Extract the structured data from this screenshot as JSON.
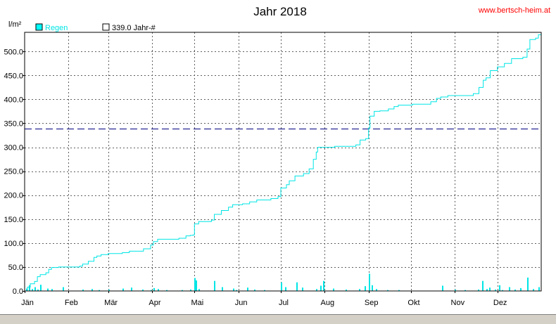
{
  "watermark": "www.bertsch-heim.at",
  "chart_data": {
    "type": "line",
    "title": "Jahr 2018",
    "ylabel": "l/m²",
    "ylim": [
      0,
      540
    ],
    "grid": true,
    "legend_placement": "top-left",
    "yticks": [
      0,
      50,
      100,
      150,
      200,
      250,
      300,
      350,
      400,
      450,
      500
    ],
    "ytick_labels": [
      "0.0",
      "50.0",
      "100.0",
      "150.0",
      "200.0",
      "250.0",
      "300.0",
      "350.0",
      "400.0",
      "450.0",
      "500.0"
    ],
    "x_range_days": [
      1,
      366
    ],
    "months": [
      {
        "label": "Jän",
        "day": 1
      },
      {
        "label": "Feb",
        "day": 32
      },
      {
        "label": "Mär",
        "day": 60
      },
      {
        "label": "Apr",
        "day": 91
      },
      {
        "label": "Mai",
        "day": 121
      },
      {
        "label": "Jun",
        "day": 152
      },
      {
        "label": "Jul",
        "day": 182
      },
      {
        "label": "Aug",
        "day": 213
      },
      {
        "label": "Sep",
        "day": 244
      },
      {
        "label": "Okt",
        "day": 274
      },
      {
        "label": "Nov",
        "day": 305
      },
      {
        "label": "Dez",
        "day": 335
      }
    ],
    "series": [
      {
        "name": "Regen",
        "type": "cumulative-line",
        "color": "#00e5e5",
        "points": [
          [
            1,
            0
          ],
          [
            3,
            8
          ],
          [
            5,
            15
          ],
          [
            8,
            20
          ],
          [
            10,
            30
          ],
          [
            12,
            34
          ],
          [
            16,
            38
          ],
          [
            18,
            45
          ],
          [
            20,
            49
          ],
          [
            25,
            50
          ],
          [
            35,
            50
          ],
          [
            40,
            52
          ],
          [
            42,
            56
          ],
          [
            46,
            62
          ],
          [
            50,
            70
          ],
          [
            52,
            73
          ],
          [
            55,
            76
          ],
          [
            60,
            78
          ],
          [
            70,
            80
          ],
          [
            75,
            83
          ],
          [
            85,
            88
          ],
          [
            90,
            96
          ],
          [
            92,
            103
          ],
          [
            95,
            108
          ],
          [
            105,
            108
          ],
          [
            110,
            110
          ],
          [
            115,
            115
          ],
          [
            118,
            116
          ],
          [
            120,
            117
          ],
          [
            121,
            140
          ],
          [
            124,
            145
          ],
          [
            133,
            148
          ],
          [
            135,
            160
          ],
          [
            140,
            168
          ],
          [
            145,
            175
          ],
          [
            148,
            180
          ],
          [
            155,
            182
          ],
          [
            160,
            186
          ],
          [
            165,
            190
          ],
          [
            175,
            193
          ],
          [
            180,
            197
          ],
          [
            182,
            215
          ],
          [
            186,
            222
          ],
          [
            188,
            230
          ],
          [
            192,
            240
          ],
          [
            198,
            245
          ],
          [
            202,
            255
          ],
          [
            205,
            275
          ],
          [
            207,
            290
          ],
          [
            208,
            300
          ],
          [
            215,
            300
          ],
          [
            220,
            302
          ],
          [
            235,
            305
          ],
          [
            238,
            315
          ],
          [
            242,
            318
          ],
          [
            244,
            340
          ],
          [
            245,
            365
          ],
          [
            248,
            375
          ],
          [
            252,
            376
          ],
          [
            258,
            380
          ],
          [
            262,
            385
          ],
          [
            265,
            388
          ],
          [
            275,
            390
          ],
          [
            283,
            390
          ],
          [
            288,
            395
          ],
          [
            292,
            402
          ],
          [
            295,
            405
          ],
          [
            300,
            408
          ],
          [
            310,
            408
          ],
          [
            315,
            408
          ],
          [
            318,
            412
          ],
          [
            322,
            425
          ],
          [
            325,
            440
          ],
          [
            327,
            445
          ],
          [
            330,
            460
          ],
          [
            335,
            468
          ],
          [
            340,
            475
          ],
          [
            345,
            485
          ],
          [
            353,
            488
          ],
          [
            356,
            505
          ],
          [
            358,
            525
          ],
          [
            362,
            528
          ],
          [
            364,
            535
          ],
          [
            366,
            540
          ]
        ]
      },
      {
        "name": "339.0 Jahr-#",
        "type": "reference-line",
        "color": "#000080",
        "value": 339.0
      }
    ],
    "daily_bars": [
      [
        2,
        5
      ],
      [
        4,
        12
      ],
      [
        6,
        4
      ],
      [
        8,
        8
      ],
      [
        10,
        3
      ],
      [
        12,
        13
      ],
      [
        17,
        5
      ],
      [
        20,
        4
      ],
      [
        28,
        8
      ],
      [
        42,
        3
      ],
      [
        48,
        4
      ],
      [
        53,
        2
      ],
      [
        60,
        3
      ],
      [
        70,
        5
      ],
      [
        76,
        7
      ],
      [
        84,
        3
      ],
      [
        90,
        2
      ],
      [
        92,
        6
      ],
      [
        95,
        4
      ],
      [
        101,
        2
      ],
      [
        112,
        2
      ],
      [
        118,
        3
      ],
      [
        121,
        27
      ],
      [
        122,
        22
      ],
      [
        124,
        4
      ],
      [
        135,
        21
      ],
      [
        140,
        8
      ],
      [
        148,
        5
      ],
      [
        150,
        2
      ],
      [
        158,
        7
      ],
      [
        163,
        3
      ],
      [
        170,
        2
      ],
      [
        182,
        18
      ],
      [
        185,
        8
      ],
      [
        193,
        18
      ],
      [
        197,
        7
      ],
      [
        207,
        4
      ],
      [
        210,
        11
      ],
      [
        212,
        21
      ],
      [
        219,
        5
      ],
      [
        228,
        3
      ],
      [
        237,
        4
      ],
      [
        241,
        10
      ],
      [
        244,
        36
      ],
      [
        246,
        12
      ],
      [
        249,
        4
      ],
      [
        257,
        2
      ],
      [
        265,
        2
      ],
      [
        296,
        11
      ],
      [
        305,
        3
      ],
      [
        312,
        2
      ],
      [
        321,
        3
      ],
      [
        324,
        21
      ],
      [
        327,
        4
      ],
      [
        329,
        7
      ],
      [
        333,
        3
      ],
      [
        336,
        12
      ],
      [
        338,
        2
      ],
      [
        343,
        8
      ],
      [
        347,
        3
      ],
      [
        351,
        6
      ],
      [
        356,
        28
      ],
      [
        360,
        4
      ],
      [
        364,
        8
      ]
    ]
  }
}
